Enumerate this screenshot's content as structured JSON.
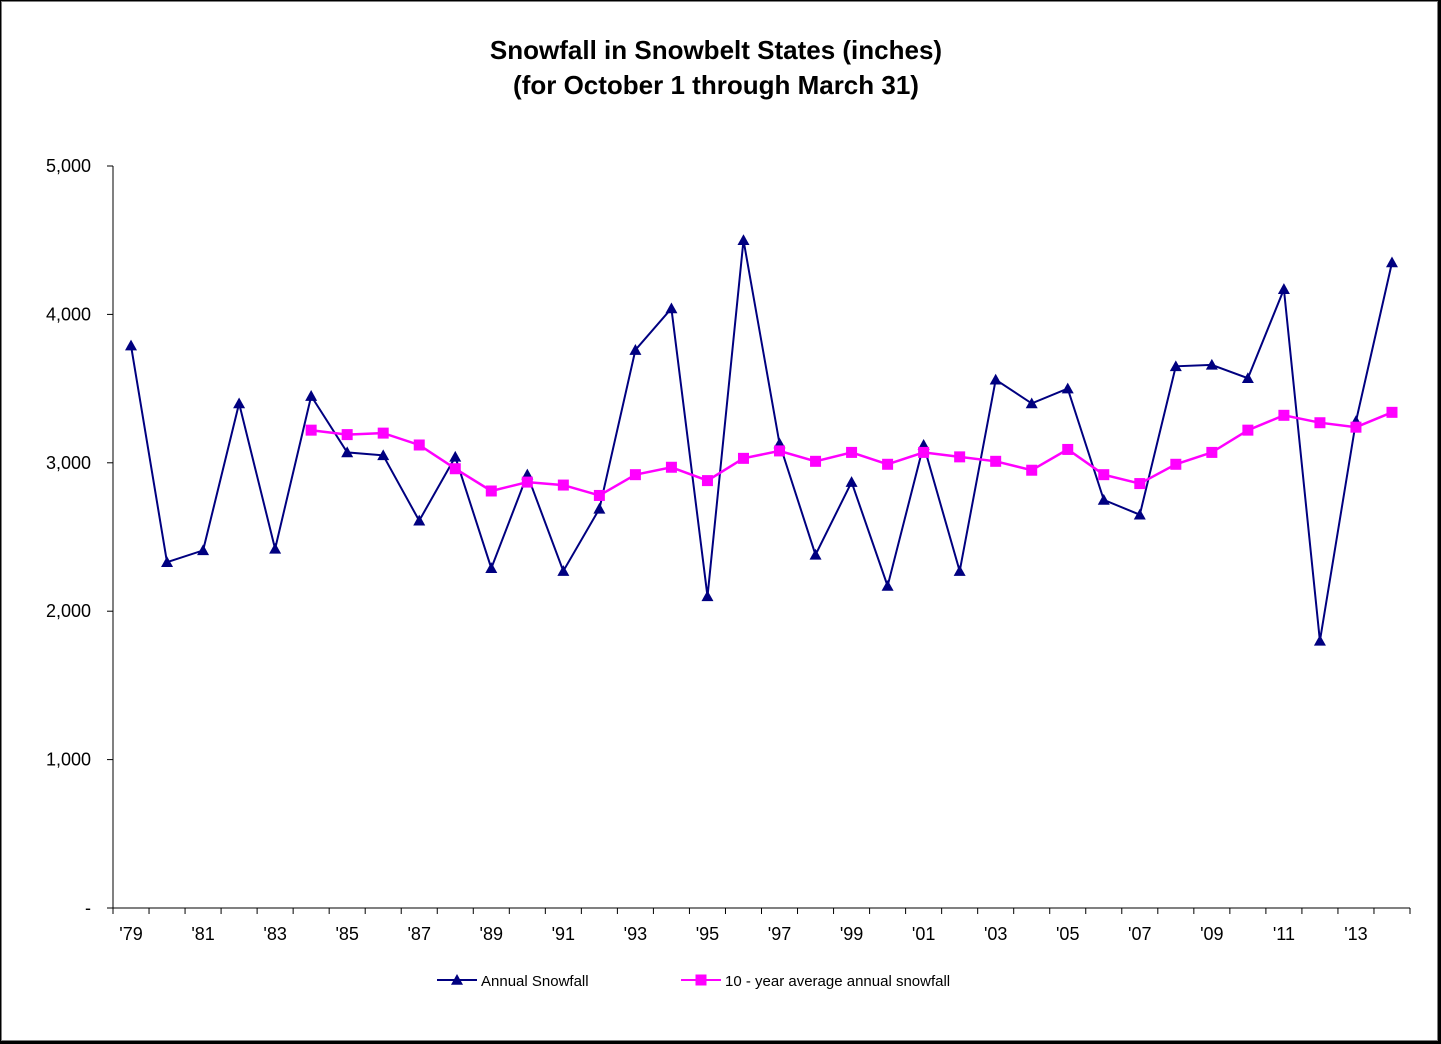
{
  "chart_data": {
    "type": "line",
    "title": [
      "Snowfall in Snowbelt States (inches)",
      "(for October 1 through March 31)"
    ],
    "xlabel": "",
    "ylabel": "",
    "x": [
      1979,
      1980,
      1981,
      1982,
      1983,
      1984,
      1985,
      1986,
      1987,
      1988,
      1989,
      1990,
      1991,
      1992,
      1993,
      1994,
      1995,
      1996,
      1997,
      1998,
      1999,
      2000,
      2001,
      2002,
      2003,
      2004,
      2005,
      2006,
      2007,
      2008,
      2009,
      2010,
      2011,
      2012,
      2013,
      2014
    ],
    "x_tick_labels": [
      "'79",
      "'81",
      "'83",
      "'85",
      "'87",
      "'89",
      "'91",
      "'93",
      "'95",
      "'97",
      "'99",
      "'01",
      "'03",
      "'05",
      "'07",
      "'09",
      "'11",
      "'13"
    ],
    "ylim": [
      0,
      5000
    ],
    "y_ticks": [
      0,
      1000,
      2000,
      3000,
      4000,
      5000
    ],
    "y_tick_labels": [
      "-",
      "1,000",
      "2,000",
      "3,000",
      "4,000",
      "5,000"
    ],
    "legend_position": "bottom",
    "series": [
      {
        "name": "Annual Snowfall",
        "color": "#000080",
        "marker": "triangle",
        "values": [
          3790,
          2330,
          2410,
          3400,
          2420,
          3450,
          3070,
          3050,
          2610,
          3040,
          2290,
          2920,
          2270,
          2690,
          3760,
          4040,
          2100,
          4500,
          3130,
          2380,
          2870,
          2170,
          3120,
          2270,
          3560,
          3400,
          3500,
          2750,
          2650,
          3650,
          3660,
          3570,
          4170,
          1800,
          3280,
          4350
        ]
      },
      {
        "name": "10 - year average annual snowfall",
        "color": "#ff00ff",
        "marker": "square",
        "values": [
          null,
          null,
          null,
          null,
          null,
          3220,
          3190,
          3200,
          3120,
          2960,
          2810,
          2870,
          2850,
          2780,
          2920,
          2970,
          2880,
          3030,
          3080,
          3010,
          3070,
          2990,
          3070,
          3040,
          3010,
          2950,
          3090,
          2920,
          2860,
          2990,
          3070,
          3220,
          3320,
          3270,
          3240,
          3340
        ]
      }
    ]
  }
}
